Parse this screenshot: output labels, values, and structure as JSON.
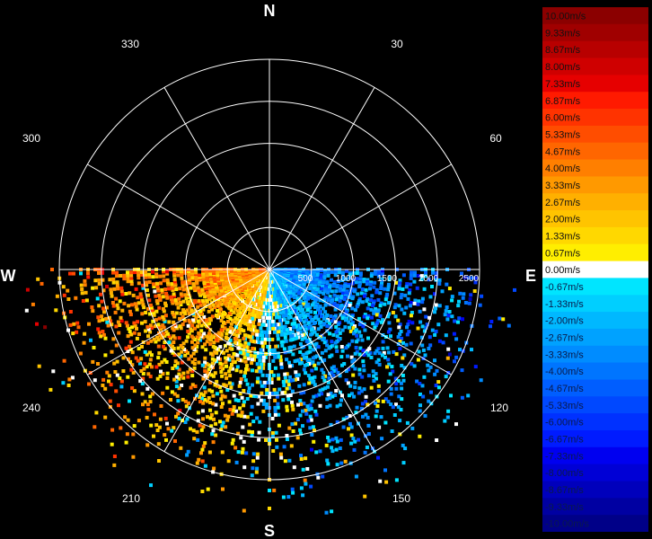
{
  "chart_data": {
    "type": "polar-scan-heatmap",
    "compass": {
      "north": "N",
      "east": "E",
      "south": "S",
      "west": "W"
    },
    "angle_ticks": [
      "30",
      "60",
      "120",
      "150",
      "210",
      "240",
      "300",
      "330"
    ],
    "range_ticks": [
      "500",
      "1000",
      "1500",
      "2000",
      "2500"
    ],
    "range_max": 2500,
    "scan_sector_deg": [
      90,
      270
    ],
    "colorbar": {
      "unit": "m/s",
      "entries": [
        {
          "label": "10.00m/s",
          "value": 10.0,
          "color": "#8b0000"
        },
        {
          "label": "9.33m/s",
          "value": 9.33,
          "color": "#a00000"
        },
        {
          "label": "8.67m/s",
          "value": 8.67,
          "color": "#b80000"
        },
        {
          "label": "8.00m/s",
          "value": 8.0,
          "color": "#cf0000"
        },
        {
          "label": "7.33m/s",
          "value": 7.33,
          "color": "#e60000"
        },
        {
          "label": "6.87m/s",
          "value": 6.87,
          "color": "#ff1a00"
        },
        {
          "label": "6.00m/s",
          "value": 6.0,
          "color": "#ff3300"
        },
        {
          "label": "5.33m/s",
          "value": 5.33,
          "color": "#ff4d00"
        },
        {
          "label": "4.67m/s",
          "value": 4.67,
          "color": "#ff6600"
        },
        {
          "label": "4.00m/s",
          "value": 4.0,
          "color": "#ff7f00"
        },
        {
          "label": "3.33m/s",
          "value": 3.33,
          "color": "#ff9900"
        },
        {
          "label": "2.67m/s",
          "value": 2.67,
          "color": "#ffb000"
        },
        {
          "label": "2.00m/s",
          "value": 2.0,
          "color": "#ffc400"
        },
        {
          "label": "1.33m/s",
          "value": 1.33,
          "color": "#ffd800"
        },
        {
          "label": "0.67m/s",
          "value": 0.67,
          "color": "#ffee00"
        },
        {
          "label": "0.00m/s",
          "value": 0.0,
          "color": "#ffffff"
        },
        {
          "label": "-0.67m/s",
          "value": -0.67,
          "color": "#00e5ff"
        },
        {
          "label": "-1.33m/s",
          "value": -1.33,
          "color": "#00cfff"
        },
        {
          "label": "-2.00m/s",
          "value": -2.0,
          "color": "#00b8ff"
        },
        {
          "label": "-2.67m/s",
          "value": -2.67,
          "color": "#00a2ff"
        },
        {
          "label": "-3.33m/s",
          "value": -3.33,
          "color": "#008cff"
        },
        {
          "label": "-4.00m/s",
          "value": -4.0,
          "color": "#0075ff"
        },
        {
          "label": "-4.67m/s",
          "value": -4.67,
          "color": "#005eff"
        },
        {
          "label": "-5.33m/s",
          "value": -5.33,
          "color": "#0048ff"
        },
        {
          "label": "-6.00m/s",
          "value": -6.0,
          "color": "#0031ff"
        },
        {
          "label": "-6.67m/s",
          "value": -6.67,
          "color": "#001bff"
        },
        {
          "label": "-7.33m/s",
          "value": -7.33,
          "color": "#0000f0"
        },
        {
          "label": "-8.00m/s",
          "value": -8.0,
          "color": "#0000d6"
        },
        {
          "label": "-8.67m/s",
          "value": -8.67,
          "color": "#0000bc"
        },
        {
          "label": "-9.33m/s",
          "value": -9.33,
          "color": "#0000a2"
        },
        {
          "label": "-10.00m/s",
          "value": -10.0,
          "color": "#000088"
        }
      ]
    },
    "sectors": [
      {
        "from_deg": 90,
        "to_deg": 110,
        "velocity": -3.5,
        "density": 0.55
      },
      {
        "from_deg": 110,
        "to_deg": 130,
        "velocity": -3.0,
        "density": 0.5
      },
      {
        "from_deg": 130,
        "to_deg": 150,
        "velocity": -2.5,
        "density": 0.45
      },
      {
        "from_deg": 150,
        "to_deg": 170,
        "velocity": -1.8,
        "density": 0.45
      },
      {
        "from_deg": 170,
        "to_deg": 190,
        "velocity": -0.8,
        "density": 0.5
      },
      {
        "from_deg": 190,
        "to_deg": 210,
        "velocity": 1.5,
        "density": 0.5
      },
      {
        "from_deg": 210,
        "to_deg": 230,
        "velocity": 2.2,
        "density": 0.55
      },
      {
        "from_deg": 230,
        "to_deg": 250,
        "velocity": 2.8,
        "density": 0.6
      },
      {
        "from_deg": 250,
        "to_deg": 270,
        "velocity": 3.5,
        "density": 0.7
      }
    ]
  }
}
